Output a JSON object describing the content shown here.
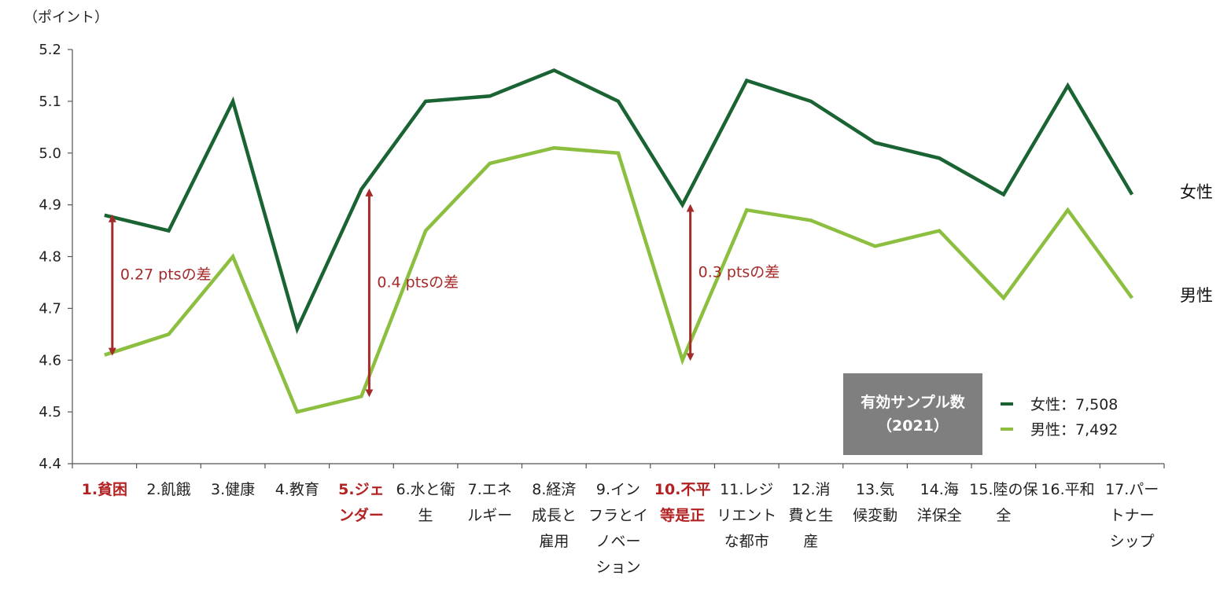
{
  "chart_data": {
    "type": "line",
    "ylabel": "（ポイント）",
    "ylim": [
      4.4,
      5.2
    ],
    "yticks": [
      "4.4",
      "4.5",
      "4.6",
      "4.7",
      "4.8",
      "4.9",
      "5.0",
      "5.1",
      "5.2"
    ],
    "categories": [
      [
        "1.貧困"
      ],
      [
        "2.飢餓"
      ],
      [
        "3.健康"
      ],
      [
        "4.教育"
      ],
      [
        "5.ジェ",
        "ンダー"
      ],
      [
        "6.水と衛",
        "生"
      ],
      [
        "7.エネ",
        "ルギー"
      ],
      [
        "8.経済",
        "成長と",
        "雇用"
      ],
      [
        "9.イン",
        "フラとイ",
        "ノベー",
        "ション"
      ],
      [
        "10.不平",
        "等是正"
      ],
      [
        "11.レジ",
        "リエント",
        "な都市"
      ],
      [
        "12.消",
        "費と生",
        "産"
      ],
      [
        "13.気",
        "候変動"
      ],
      [
        "14.海",
        "洋保全"
      ],
      [
        "15.陸の保",
        "全"
      ],
      [
        "16.平和"
      ],
      [
        "17.パー",
        "トナー",
        "シップ"
      ]
    ],
    "highlighted_categories": [
      0,
      4,
      9
    ],
    "series": [
      {
        "name": "女性",
        "color": "#1a6332",
        "values": [
          4.88,
          4.85,
          5.1,
          4.66,
          4.93,
          5.1,
          5.11,
          5.16,
          5.1,
          4.9,
          5.14,
          5.1,
          5.02,
          4.99,
          4.92,
          5.13,
          4.92
        ]
      },
      {
        "name": "男性",
        "color": "#8cbf3f",
        "values": [
          4.61,
          4.65,
          4.8,
          4.5,
          4.53,
          4.85,
          4.98,
          5.01,
          5.0,
          4.6,
          4.89,
          4.87,
          4.82,
          4.85,
          4.72,
          4.89,
          4.72
        ]
      }
    ],
    "annotations": [
      {
        "category_index": 0,
        "from": 4.61,
        "to": 4.88,
        "text": "0.27 ptsの差"
      },
      {
        "category_index": 4,
        "from": 4.53,
        "to": 4.93,
        "text": "0.4 ptsの差"
      },
      {
        "category_index": 9,
        "from": 4.6,
        "to": 4.9,
        "text": "0.3 ptsの差"
      }
    ],
    "annotation_color": "#a52a2a",
    "sample_box": {
      "title": "有効サンプル数",
      "year": "（2021）",
      "legend": [
        {
          "text": "女性：7,508",
          "color": "#1a6332"
        },
        {
          "text": "男性：7,492",
          "color": "#8cbf3f"
        }
      ]
    }
  }
}
